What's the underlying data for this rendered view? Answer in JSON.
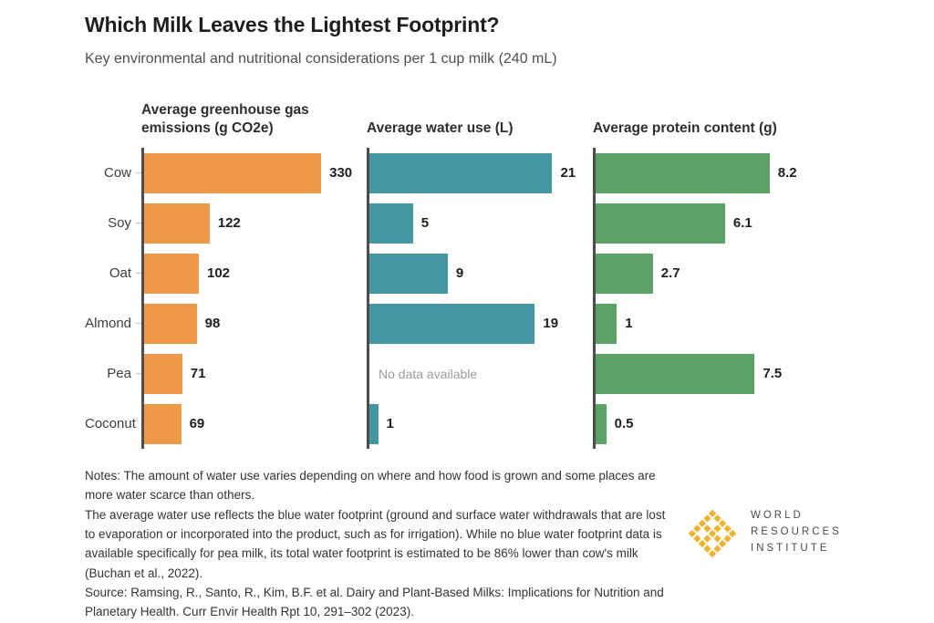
{
  "title": "Which Milk Leaves the Lightest Footprint?",
  "subtitle": "Key environmental and nutritional considerations per 1 cup milk (240 mL)",
  "chart_data": {
    "type": "bar",
    "orientation": "horizontal",
    "categories": [
      "Cow",
      "Soy",
      "Oat",
      "Almond",
      "Pea",
      "Coconut"
    ],
    "series": [
      {
        "name": "Average greenhouse gas emissions (g CO2e)",
        "values": [
          330,
          122,
          102,
          98,
          71,
          69
        ],
        "labels": [
          "330",
          "122",
          "102",
          "98",
          "71",
          "69"
        ],
        "color": "#ee9849",
        "xlim": [
          0,
          340
        ],
        "textured": false
      },
      {
        "name": "Average water use (L)",
        "values": [
          21,
          5,
          9,
          19,
          null,
          1
        ],
        "labels": [
          "21",
          "5",
          "9",
          "19",
          "",
          "1"
        ],
        "color": "#4496a1",
        "xlim": [
          0,
          22
        ],
        "textured": false
      },
      {
        "name": "Average protein content (g)",
        "values": [
          8.2,
          6.1,
          2.7,
          1,
          7.5,
          0.5
        ],
        "labels": [
          "8.2",
          "6.1",
          "2.7",
          "1",
          "7.5",
          "0.5"
        ],
        "color": "#5aa266",
        "xlim": [
          0,
          8.6
        ],
        "textured": true
      }
    ],
    "no_data_text": "No data available",
    "grid": false,
    "legend_position": "none",
    "axis_color": "#4d4d4d"
  },
  "notes": [
    "Notes: The amount of water use varies depending on where and how food is grown and some places are more water scarce than others.",
    "The average water use reflects the blue water footprint (ground and surface water withdrawals that are lost to evaporation or incorporated into the product, such as for irrigation). While no blue water footprint data is available specifically for pea milk, its total water footprint is estimated to be 86% lower than cow's milk (Buchan et al., 2022).",
    "Source: Ramsing, R., Santo, R., Kim, B.F. et al. Dairy and Plant-Based Milks: Implications for Nutrition and Planetary Health. Curr Envir Health Rpt 10, 291–302 (2023)."
  ],
  "logo": {
    "lines": [
      "WORLD",
      "RESOURCES",
      "INSTITUTE"
    ],
    "mark_color": "#efb32f"
  }
}
